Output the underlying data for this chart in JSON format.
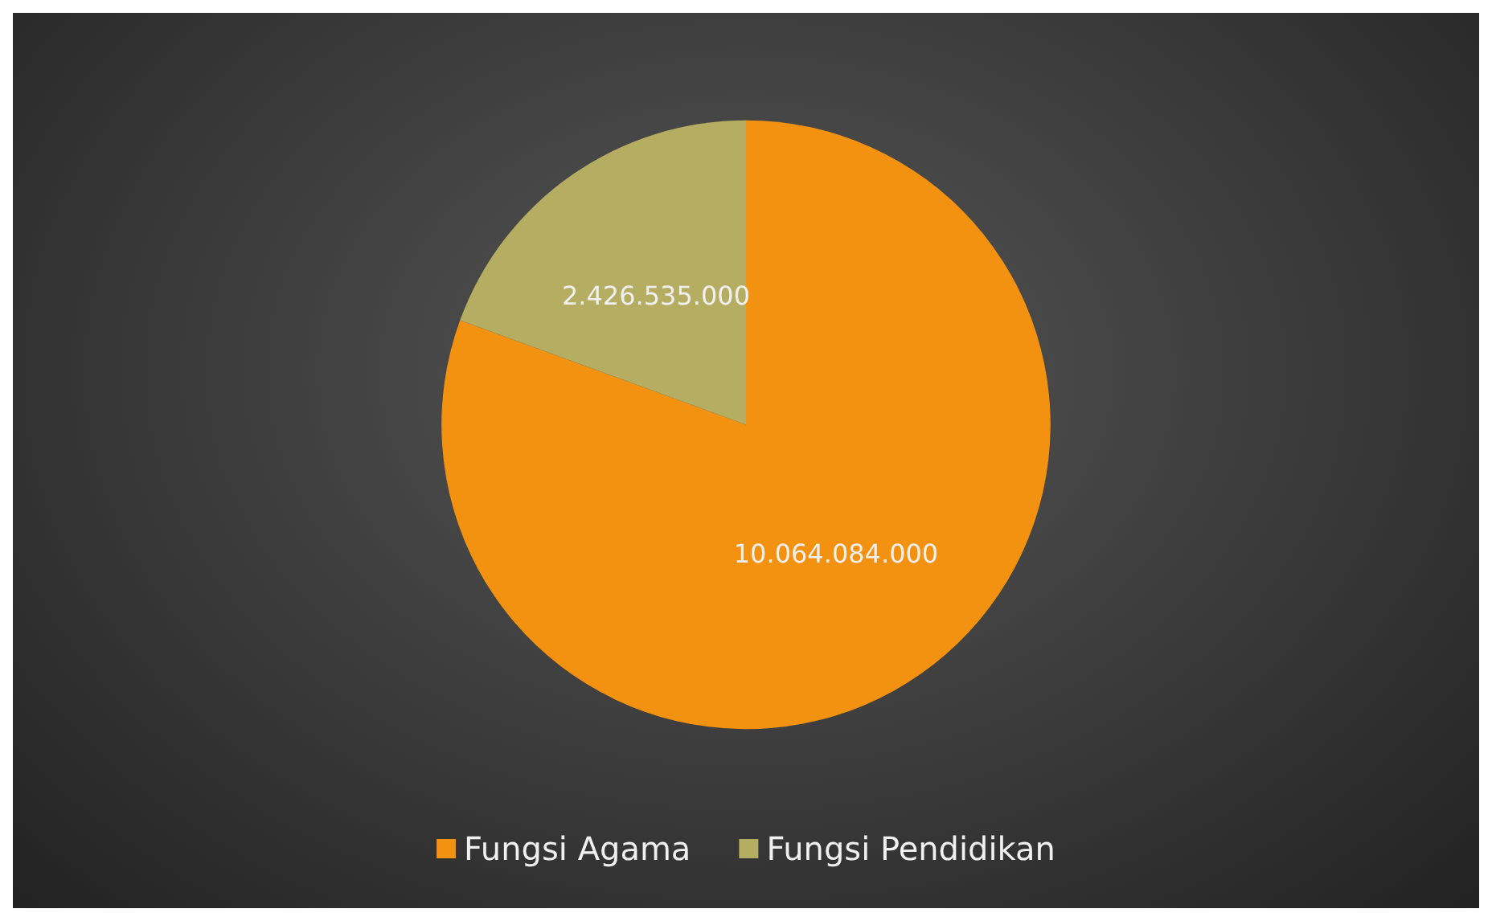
{
  "chart_data": {
    "type": "pie",
    "categories": [
      "Fungsi Agama",
      "Fungsi Pendidikan"
    ],
    "values": [
      10064084000,
      2426535000
    ],
    "value_labels": [
      "10.064.084.000",
      "2.426.535.000"
    ],
    "colors": [
      "#f39110",
      "#b5ad62"
    ],
    "legend": "bottom"
  }
}
